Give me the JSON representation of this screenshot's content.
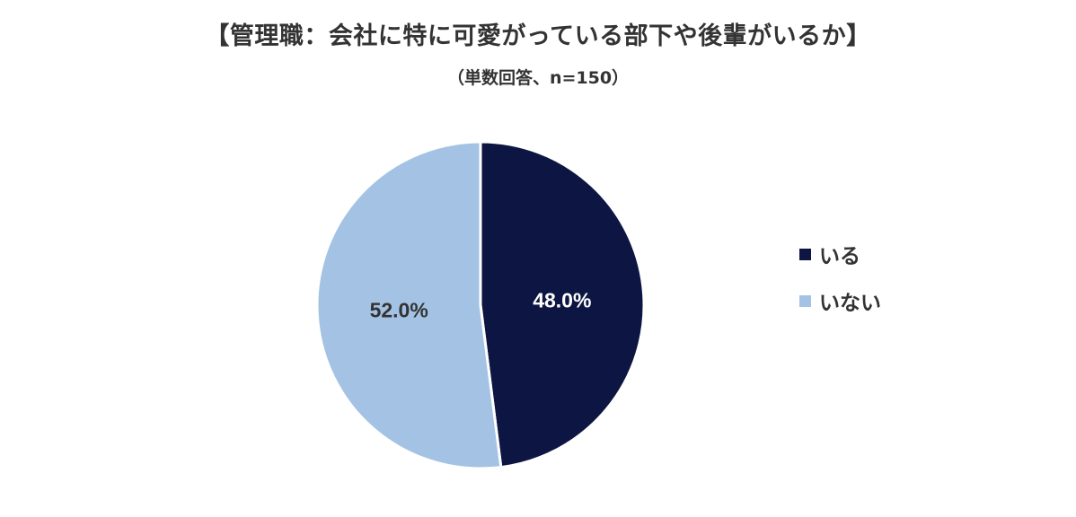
{
  "chart_data": {
    "type": "pie",
    "title": "【管理職：会社に特に可愛がっている部下や後輩がいるか】",
    "subtitle": "（単数回答、n=150）",
    "categories": [
      "いる",
      "いない"
    ],
    "values": [
      48.0,
      52.0
    ],
    "value_labels": [
      "48.0%",
      "52.0%"
    ],
    "colors": [
      "#0d1642",
      "#a4c3e4"
    ],
    "label_colors": [
      "#ffffff",
      "#333333"
    ],
    "start_angle": "12 o'clock",
    "direction": "clockwise",
    "legend_position": "right"
  }
}
